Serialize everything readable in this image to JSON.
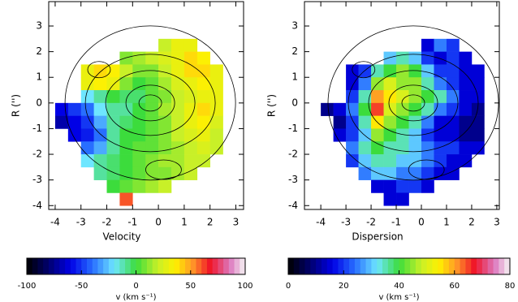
{
  "chart_data": [
    {
      "type": "heatmap",
      "xlabel": "Velocity",
      "ylabel": "R ('')",
      "xlim": [
        -4.25,
        3.3
      ],
      "ylim": [
        -4.15,
        3.95
      ],
      "xticks": [
        -4,
        -3,
        -2,
        -1,
        0,
        1,
        2,
        3
      ],
      "yticks": [
        -4,
        -3,
        -2,
        -1,
        0,
        1,
        2,
        3
      ],
      "x": [
        -3.75,
        -3.25,
        -2.75,
        -2.25,
        -1.75,
        -1.25,
        -0.75,
        -0.25,
        0.25,
        0.75,
        1.25,
        1.75,
        2.25,
        2.75
      ],
      "y": [
        2.25,
        1.75,
        1.25,
        0.75,
        0.25,
        -0.25,
        -0.75,
        -1.25,
        -1.75,
        -2.25,
        -2.75,
        -3.25,
        -3.75
      ],
      "z": [
        [
          null,
          null,
          null,
          null,
          null,
          null,
          null,
          null,
          20,
          30,
          30,
          null,
          null,
          null
        ],
        [
          null,
          null,
          null,
          null,
          null,
          10,
          15,
          20,
          25,
          30,
          40,
          35,
          null,
          null
        ],
        [
          null,
          null,
          30,
          40,
          35,
          20,
          10,
          10,
          20,
          30,
          40,
          40,
          30,
          null
        ],
        [
          null,
          null,
          30,
          35,
          30,
          10,
          0,
          5,
          15,
          25,
          30,
          35,
          30,
          null
        ],
        [
          null,
          null,
          -20,
          -10,
          0,
          -5,
          -5,
          5,
          10,
          20,
          25,
          30,
          30,
          null
        ],
        [
          -60,
          -50,
          -40,
          -20,
          -10,
          -10,
          0,
          5,
          15,
          20,
          30,
          40,
          30,
          null
        ],
        [
          -70,
          -60,
          -50,
          -30,
          -10,
          -5,
          0,
          5,
          10,
          20,
          30,
          35,
          25,
          null
        ],
        [
          null,
          -60,
          -55,
          -40,
          -10,
          0,
          0,
          5,
          10,
          20,
          25,
          30,
          20,
          null
        ],
        [
          null,
          null,
          -40,
          -30,
          -10,
          0,
          5,
          5,
          10,
          15,
          20,
          25,
          20,
          null
        ],
        [
          null,
          null,
          -20,
          -10,
          -5,
          0,
          5,
          10,
          15,
          15,
          20,
          20,
          null,
          null
        ],
        [
          null,
          null,
          null,
          -10,
          -5,
          0,
          5,
          10,
          10,
          15,
          20,
          null,
          null,
          null
        ],
        [
          null,
          null,
          null,
          null,
          0,
          5,
          10,
          15,
          20,
          null,
          null,
          null,
          null,
          null
        ],
        [
          null,
          null,
          null,
          null,
          null,
          60,
          null,
          null,
          null,
          null,
          null,
          null,
          null,
          null
        ]
      ],
      "colorbar": {
        "label": "v (km s⁻¹)",
        "lim": [
          -100,
          100
        ],
        "ticks": [
          -100,
          -50,
          0,
          50,
          100
        ]
      }
    },
    {
      "type": "heatmap",
      "xlabel": "Dispersion",
      "ylabel": "R ('')",
      "xlim": [
        -4.65,
        3.1
      ],
      "ylim": [
        -4.15,
        3.95
      ],
      "xticks": [
        -4,
        -3,
        -2,
        -1,
        0,
        1,
        2,
        3
      ],
      "yticks": [
        -4,
        -3,
        -2,
        -1,
        0,
        1,
        2,
        3
      ],
      "x": [
        -3.75,
        -3.25,
        -2.75,
        -2.25,
        -1.75,
        -1.25,
        -0.75,
        -0.25,
        0.25,
        0.75,
        1.25,
        1.75,
        2.25,
        2.75
      ],
      "y": [
        2.25,
        1.75,
        1.25,
        0.75,
        0.25,
        -0.25,
        -0.75,
        -1.25,
        -1.75,
        -2.25,
        -2.75,
        -3.25,
        -3.75
      ],
      "z": [
        [
          null,
          null,
          null,
          null,
          null,
          null,
          null,
          null,
          15,
          25,
          20,
          null,
          null,
          null
        ],
        [
          null,
          null,
          null,
          null,
          null,
          30,
          35,
          30,
          20,
          15,
          20,
          15,
          null,
          null
        ],
        [
          null,
          null,
          15,
          20,
          35,
          40,
          45,
          40,
          30,
          20,
          20,
          15,
          15,
          null
        ],
        [
          null,
          null,
          15,
          25,
          45,
          50,
          45,
          45,
          35,
          25,
          20,
          15,
          15,
          null
        ],
        [
          null,
          null,
          20,
          35,
          60,
          55,
          50,
          45,
          40,
          35,
          25,
          15,
          15,
          null
        ],
        [
          10,
          15,
          25,
          40,
          65,
          50,
          45,
          40,
          35,
          25,
          20,
          15,
          10,
          null
        ],
        [
          null,
          10,
          20,
          35,
          55,
          45,
          40,
          35,
          25,
          15,
          15,
          10,
          10,
          null
        ],
        [
          null,
          15,
          20,
          30,
          45,
          40,
          35,
          30,
          20,
          15,
          15,
          10,
          10,
          null
        ],
        [
          null,
          null,
          25,
          35,
          40,
          35,
          35,
          30,
          25,
          20,
          20,
          15,
          15,
          null
        ],
        [
          null,
          null,
          20,
          30,
          35,
          35,
          30,
          30,
          25,
          20,
          15,
          15,
          null,
          null
        ],
        [
          null,
          null,
          null,
          25,
          30,
          30,
          25,
          25,
          20,
          15,
          15,
          null,
          null,
          null
        ],
        [
          null,
          null,
          null,
          null,
          15,
          15,
          20,
          20,
          15,
          null,
          null,
          null,
          null,
          null
        ],
        [
          null,
          null,
          null,
          null,
          null,
          15,
          15,
          null,
          null,
          null,
          null,
          null,
          null,
          null
        ]
      ],
      "colorbar": {
        "label": "v (km s⁻¹)",
        "lim": [
          0,
          80
        ],
        "ticks": [
          0,
          20,
          40,
          60,
          80
        ]
      }
    }
  ]
}
